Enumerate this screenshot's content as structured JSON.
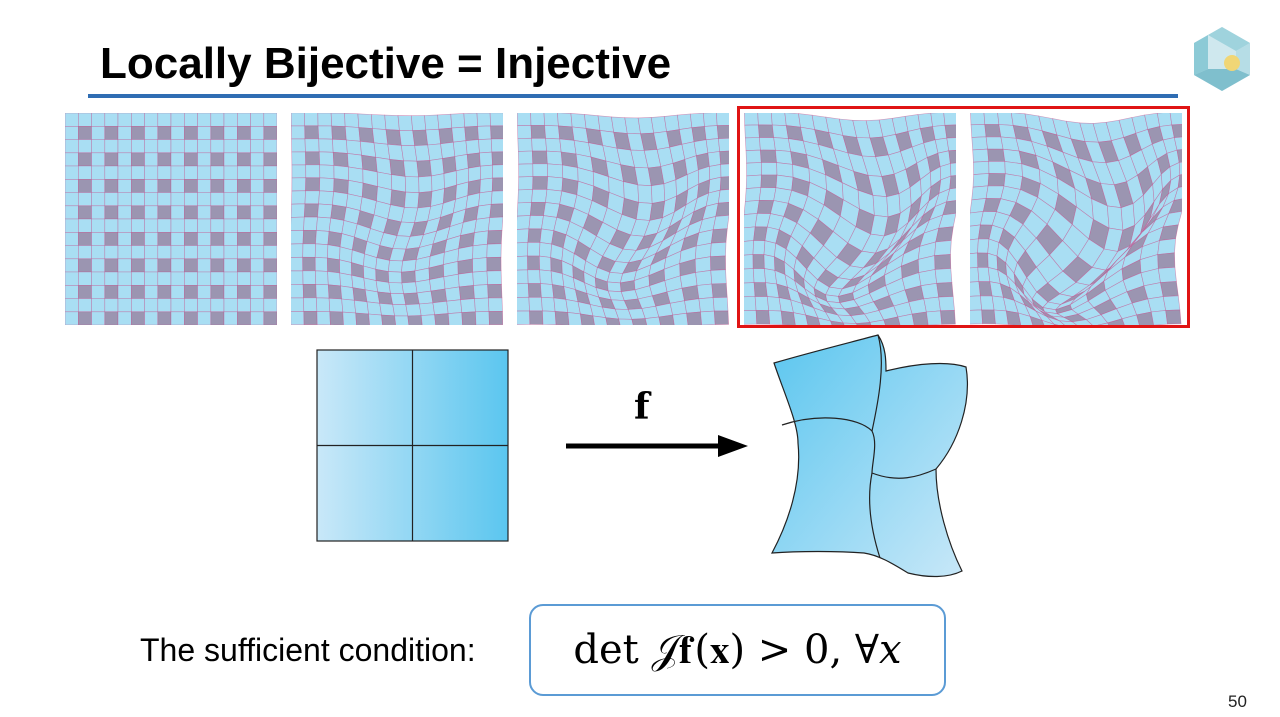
{
  "slide": {
    "title": "Locally Bijective = Injective",
    "page_number": "50"
  },
  "figure": {
    "map_label": "f",
    "panels": [
      {
        "name": "undeformed-grid",
        "strength": 0,
        "highlighted": false
      },
      {
        "name": "mild-deformation-grid",
        "strength": 0.25,
        "highlighted": false
      },
      {
        "name": "moderate-deformation-grid",
        "strength": 0.45,
        "highlighted": false
      },
      {
        "name": "strong-deformation-grid",
        "strength": 0.7,
        "highlighted": true
      },
      {
        "name": "folded-deformation-grid",
        "strength": 0.95,
        "highlighted": true
      }
    ]
  },
  "condition": {
    "label": "The sufficient condition:",
    "formula": "det 𝒥𝐟(𝐱) > 0, ∀𝑥"
  },
  "colors": {
    "title_rule": "#2f6db3",
    "highlight_border": "#e01414",
    "grid_light": "#a9def3",
    "grid_dark": "#9b95b1",
    "grid_line": "#c44d8a",
    "fill_light": "#c9e8f8",
    "fill_dark": "#5bc6ef",
    "formula_border": "#5b9bd5"
  }
}
